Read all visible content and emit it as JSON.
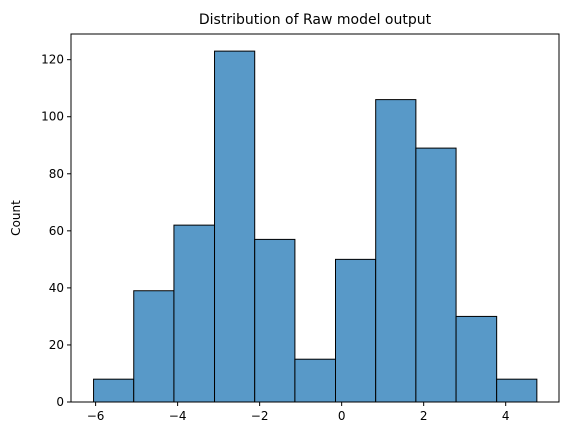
{
  "chart_data": {
    "type": "bar",
    "title": "Distribution of Raw model output",
    "xlabel": "",
    "ylabel": "Count",
    "bins": [
      {
        "start": -6.05,
        "end": -5.07,
        "count": 8
      },
      {
        "start": -5.07,
        "end": -4.09,
        "count": 39
      },
      {
        "start": -4.09,
        "end": -3.1,
        "count": 62
      },
      {
        "start": -3.1,
        "end": -2.12,
        "count": 123
      },
      {
        "start": -2.12,
        "end": -1.14,
        "count": 57
      },
      {
        "start": -1.14,
        "end": -0.15,
        "count": 15
      },
      {
        "start": -0.15,
        "end": 0.83,
        "count": 50
      },
      {
        "start": 0.83,
        "end": 1.81,
        "count": 106
      },
      {
        "start": 1.81,
        "end": 2.79,
        "count": 89
      },
      {
        "start": 2.79,
        "end": 3.78,
        "count": 30
      },
      {
        "start": 3.78,
        "end": 4.76,
        "count": 8
      }
    ],
    "xlim": [
      -6.6,
      5.3
    ],
    "ylim": [
      0,
      129
    ],
    "xticks": [
      -6,
      -4,
      -2,
      0,
      2,
      4
    ],
    "xtick_labels": [
      "−6",
      "−4",
      "−2",
      "0",
      "2",
      "4"
    ],
    "yticks": [
      0,
      20,
      40,
      60,
      80,
      100,
      120
    ],
    "ytick_labels": [
      "0",
      "20",
      "40",
      "60",
      "80",
      "100",
      "120"
    ],
    "grid": false,
    "bar_color": "#5899c8",
    "edge_color": "#000000"
  }
}
